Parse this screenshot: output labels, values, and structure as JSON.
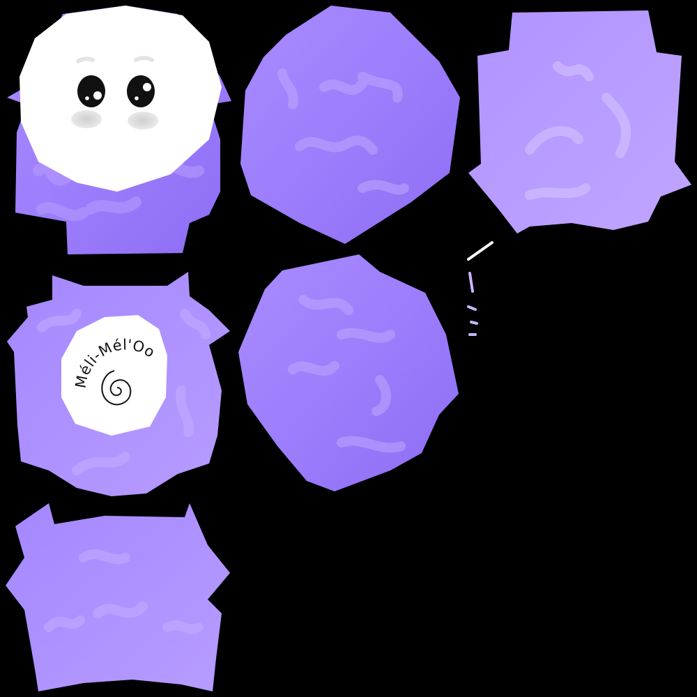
{
  "texture_sheet": {
    "background": "#000000",
    "fabric_colors": {
      "light": "#b99dff",
      "mid": "#a585ff",
      "dark": "#8f6ef0",
      "highlight": "#d6c6ff"
    },
    "face_patch": {
      "fill": "#ffffff",
      "eyes": "black-eyes-with-white-glints",
      "cheeks": "gray-blush"
    },
    "logo": {
      "text": "Méli-Mél'Oo",
      "icon": "spiral-icon"
    },
    "piece_count": 7
  }
}
